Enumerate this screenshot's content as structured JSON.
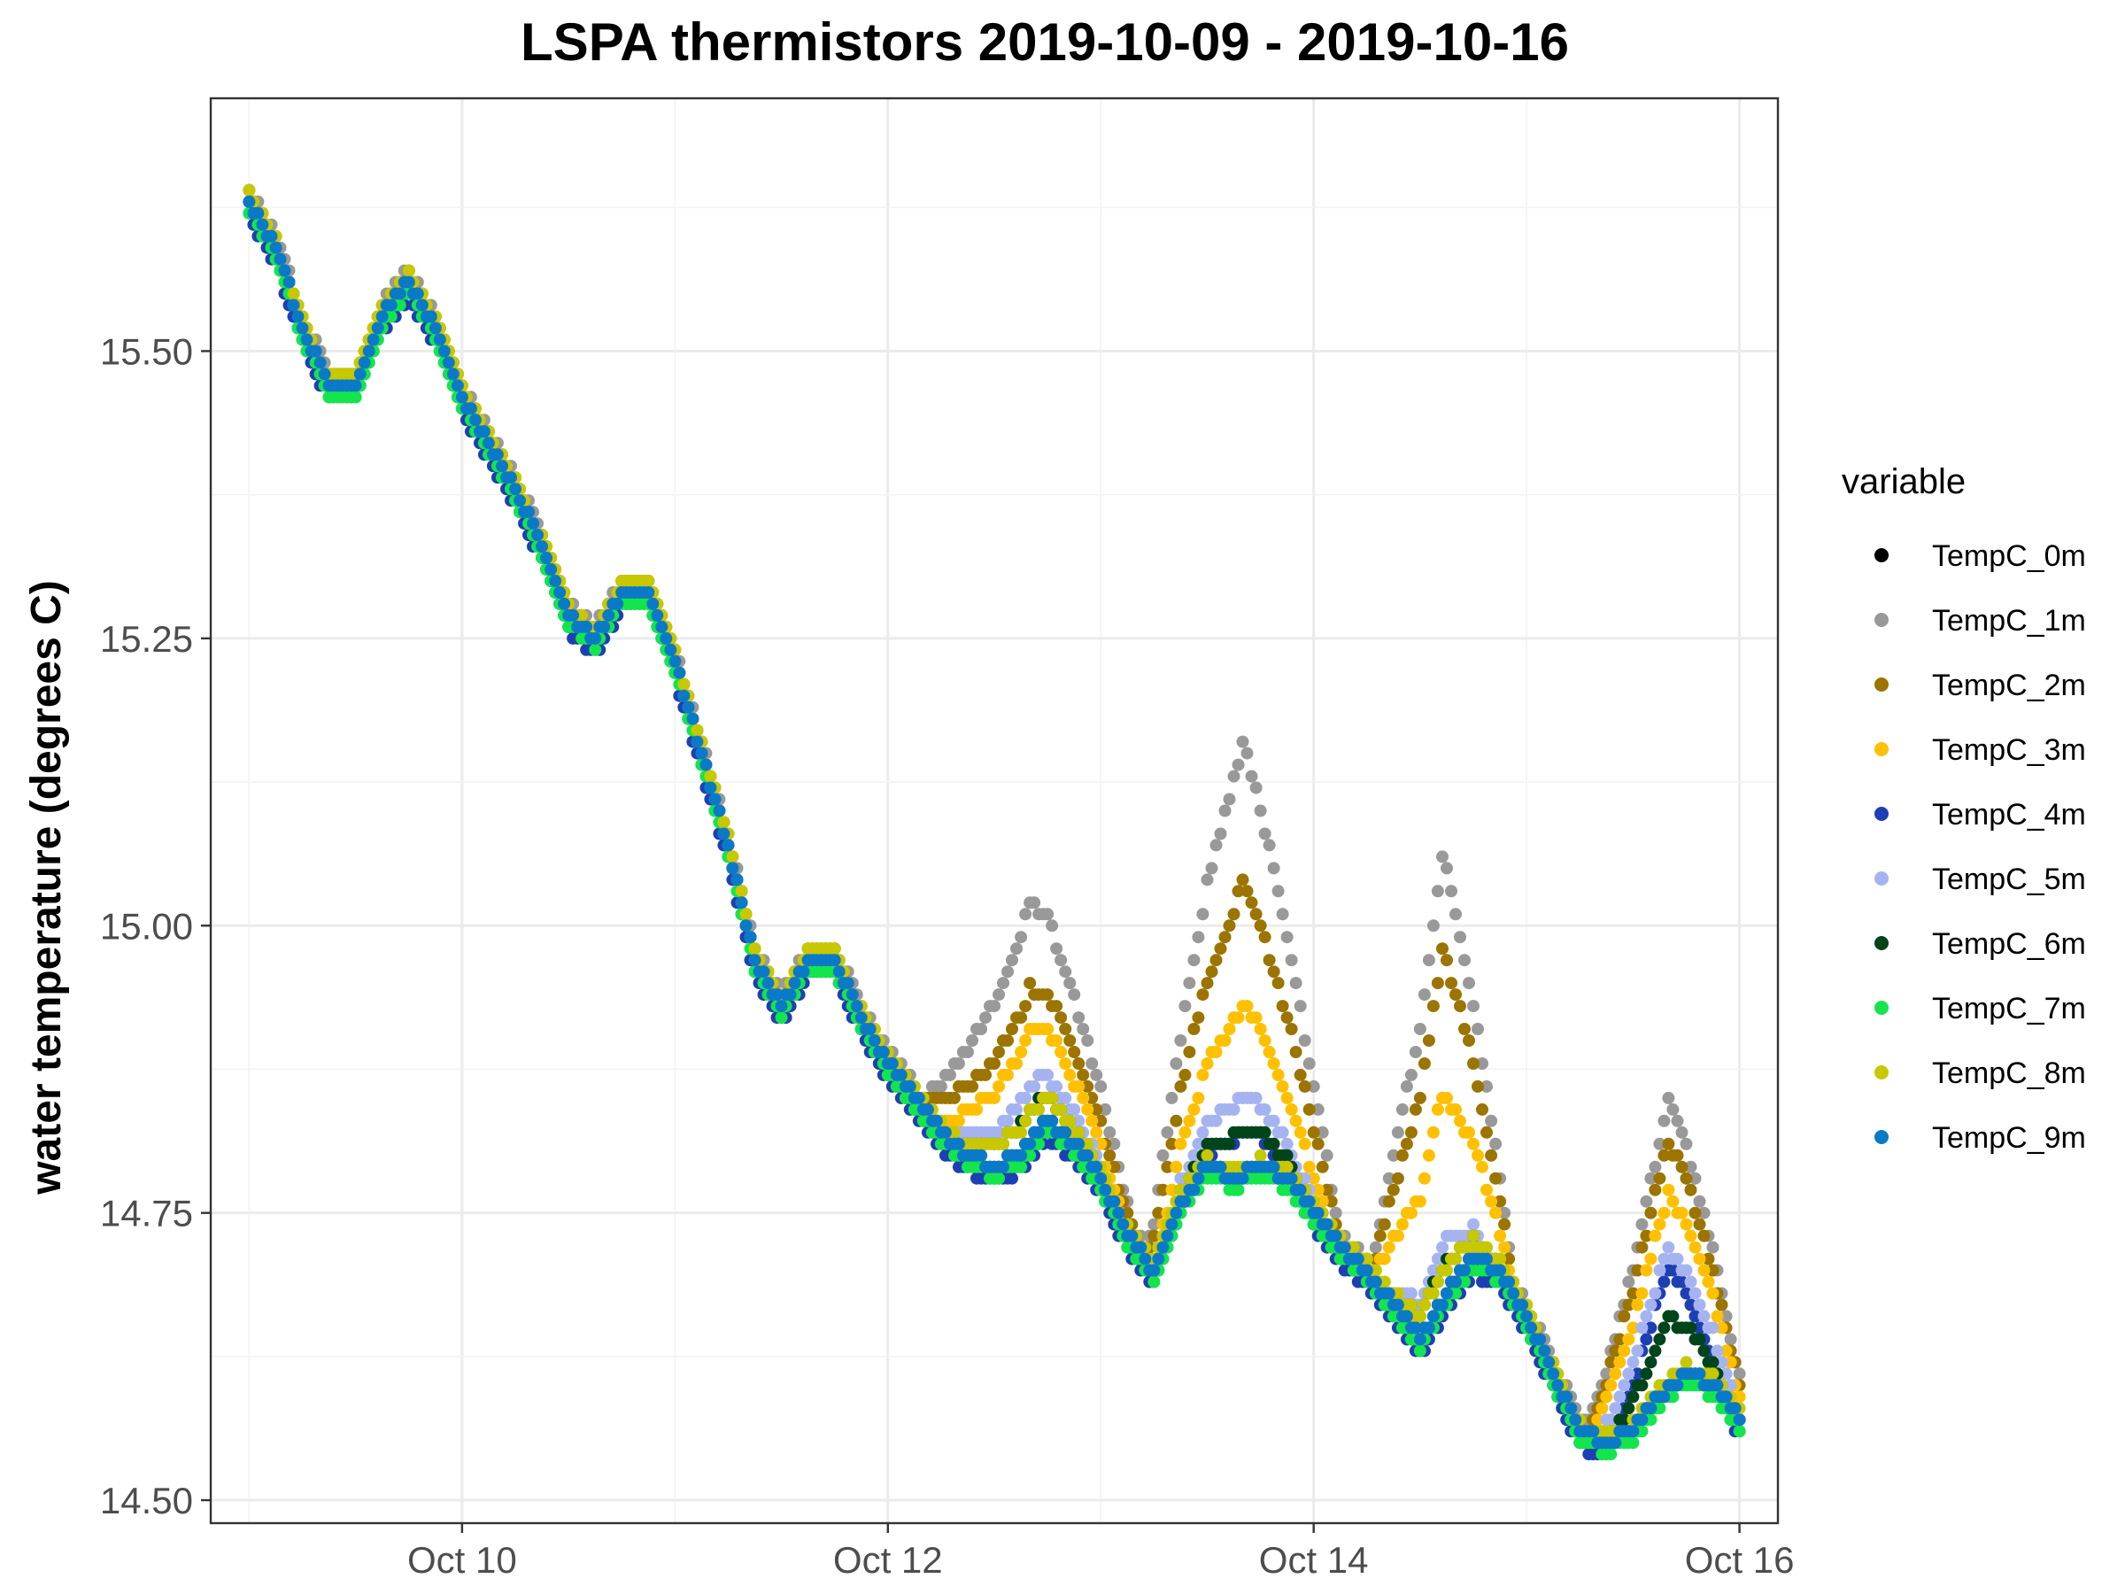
{
  "chart_data": {
    "type": "scatter",
    "title": "LSPA thermistors 2019-10-09 - 2019-10-16",
    "xlabel": "",
    "ylabel": "water temperature (degrees C)",
    "xlim": [
      "2019-10-08T19:40",
      "2019-10-16T04:20"
    ],
    "ylim": [
      14.48,
      15.72
    ],
    "x_ticks": [
      {
        "date": "2019-10-10",
        "label": "Oct 10"
      },
      {
        "date": "2019-10-12",
        "label": "Oct 12"
      },
      {
        "date": "2019-10-14",
        "label": "Oct 14"
      },
      {
        "date": "2019-10-16",
        "label": "Oct 16"
      }
    ],
    "y_ticks": [
      {
        "value": 14.5,
        "label": "14.50"
      },
      {
        "value": 14.75,
        "label": "14.75"
      },
      {
        "value": 15.0,
        "label": "15.00"
      },
      {
        "value": 15.25,
        "label": "15.25"
      },
      {
        "value": 15.5,
        "label": "15.50"
      }
    ],
    "grid": true,
    "legend": {
      "title": "variable",
      "position": "right"
    },
    "x_unit": "hours",
    "x_start": "2019-10-09T00:00",
    "common_series": {
      "values": [
        15.63,
        15.59,
        15.52,
        15.47,
        15.47,
        15.53,
        15.56,
        15.52,
        15.46,
        15.42,
        15.38,
        15.33,
        15.27,
        15.25,
        15.29,
        15.29,
        15.23,
        15.15,
        15.07,
        14.97,
        14.93,
        14.97,
        14.97,
        14.92,
        14.88,
        14.85,
        14.82,
        14.8,
        14.79,
        14.8,
        14.83,
        14.81,
        14.78,
        14.73,
        14.7,
        14.76,
        14.79,
        14.78,
        14.79,
        14.78,
        14.75,
        14.72,
        14.7,
        14.67,
        14.64,
        14.68,
        14.71,
        14.7,
        14.66,
        14.61,
        14.56,
        14.55,
        14.56,
        14.59,
        14.61,
        14.6,
        14.57
      ]
    },
    "series": [
      {
        "name": "TempC_0m",
        "color": "#000000",
        "offset": 0.0,
        "peaks": []
      },
      {
        "name": "TempC_1m",
        "color": "#999999",
        "offset": 0.01,
        "peaks": [
          {
            "hour": 88,
            "width": 12,
            "amp": 0.2
          },
          {
            "hour": 112,
            "width": 11,
            "amp": 0.37
          },
          {
            "hour": 134.5,
            "width": 8,
            "amp": 0.38
          },
          {
            "hour": 160,
            "width": 9,
            "amp": 0.24
          }
        ]
      },
      {
        "name": "TempC_2m",
        "color": "#9c7400",
        "offset": 0.005,
        "peaks": [
          {
            "hour": 88,
            "width": 12,
            "amp": 0.13
          },
          {
            "hour": 112,
            "width": 11,
            "amp": 0.25
          },
          {
            "hour": 134.5,
            "width": 8,
            "amp": 0.3
          },
          {
            "hour": 160,
            "width": 9,
            "amp": 0.21
          }
        ]
      },
      {
        "name": "TempC_3m",
        "color": "#ffc000",
        "offset": 0.0,
        "peaks": [
          {
            "hour": 88,
            "width": 11,
            "amp": 0.1
          },
          {
            "hour": 112,
            "width": 10,
            "amp": 0.15
          },
          {
            "hour": 134.5,
            "width": 8,
            "amp": 0.18
          },
          {
            "hour": 160,
            "width": 9,
            "amp": 0.17
          }
        ]
      },
      {
        "name": "TempC_4m",
        "color": "#1e3fb4",
        "offset": -0.012,
        "peaks": [
          {
            "hour": 112,
            "width": 8,
            "amp": 0.05
          },
          {
            "hour": 160,
            "width": 7,
            "amp": 0.12
          }
        ]
      },
      {
        "name": "TempC_5m",
        "color": "#a5b4f0",
        "offset": 0.0,
        "peaks": [
          {
            "hour": 88,
            "width": 10,
            "amp": 0.05
          },
          {
            "hour": 112,
            "width": 9,
            "amp": 0.07
          },
          {
            "hour": 134.5,
            "width": 7,
            "amp": 0.05
          },
          {
            "hour": 160,
            "width": 8,
            "amp": 0.12
          }
        ]
      },
      {
        "name": "TempC_6m",
        "color": "#00441b",
        "offset": 0.0,
        "peaks": [
          {
            "hour": 88,
            "width": 9,
            "amp": 0.03
          },
          {
            "hour": 112,
            "width": 8,
            "amp": 0.04
          },
          {
            "hour": 134.5,
            "width": 7,
            "amp": 0.03
          },
          {
            "hour": 160,
            "width": 7,
            "amp": 0.06
          }
        ]
      },
      {
        "name": "TempC_7m",
        "color": "#13e64c",
        "offset": -0.008,
        "peaks": []
      },
      {
        "name": "TempC_8m",
        "color": "#c8c800",
        "offset": 0.006,
        "peaks": [
          {
            "hour": 88,
            "width": 9,
            "amp": 0.02
          },
          {
            "hour": 134.5,
            "width": 7,
            "amp": 0.02
          }
        ]
      },
      {
        "name": "TempC_9m",
        "color": "#0a7ac8",
        "offset": 0.0,
        "peaks": []
      }
    ]
  }
}
